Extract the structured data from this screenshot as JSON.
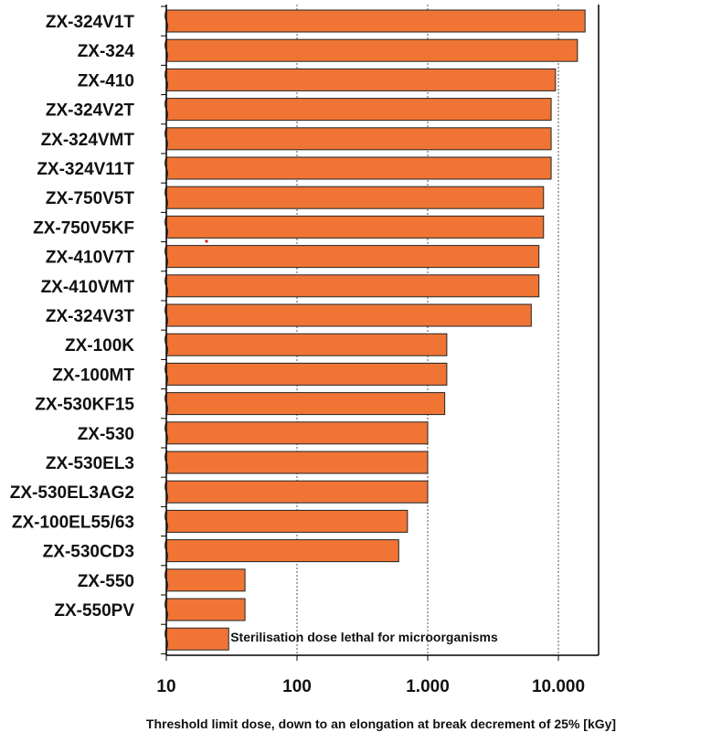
{
  "chart_data": {
    "type": "bar",
    "orientation": "horizontal",
    "x_scale": "log",
    "xlim": [
      10,
      20000
    ],
    "xlabel": "Threshold limit dose, down to an elongation at break decrement of 25% [kGy]",
    "ylabel": "",
    "title": "",
    "grid": "vertical dotted",
    "bar_color": "#f07535",
    "x_ticks": [
      {
        "value": 10,
        "label": "10"
      },
      {
        "value": 100,
        "label": "100"
      },
      {
        "value": 1000,
        "label": "1.000"
      },
      {
        "value": 10000,
        "label": "10.000"
      }
    ],
    "categories": [
      "ZX-324V1T",
      "ZX-324",
      "ZX-410",
      "ZX-324V2T",
      "ZX-324VMT",
      "ZX-324V11T",
      "ZX-750V5T",
      "ZX-750V5KF",
      "ZX-410V7T",
      "ZX-410VMT",
      "ZX-324V3T",
      "ZX-100K",
      "ZX-100MT",
      "ZX-530KF15",
      "ZX-530",
      "ZX-530EL3",
      "ZX-530EL3AG2",
      "ZX-100EL55/63",
      "ZX-530CD3",
      "ZX-550",
      "ZX-550PV",
      ""
    ],
    "values": [
      16000,
      14000,
      9500,
      8800,
      8800,
      8800,
      7700,
      7700,
      7100,
      7100,
      6200,
      1400,
      1400,
      1350,
      1000,
      1000,
      1000,
      700,
      600,
      40,
      40,
      30
    ],
    "annotations": [
      {
        "text": "Sterilisation dose lethal for  microorganisms",
        "category_index": 21
      }
    ]
  }
}
